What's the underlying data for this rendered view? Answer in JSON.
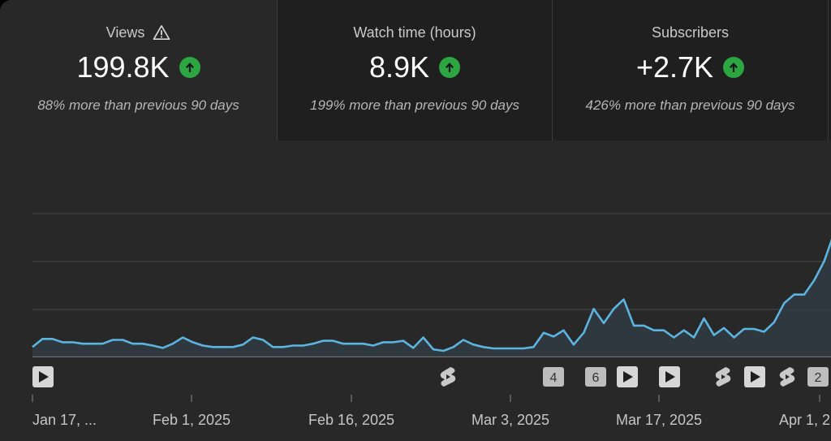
{
  "metrics": [
    {
      "label": "Views",
      "value": "199.8K",
      "comparison": "88% more than previous 90 days",
      "has_warning": true,
      "trend": "up"
    },
    {
      "label": "Watch time (hours)",
      "value": "8.9K",
      "comparison": "199% more than previous 90 days",
      "trend": "up"
    },
    {
      "label": "Subscribers",
      "value": "+2.7K",
      "comparison": "426% more than previous 90 days",
      "trend": "up"
    }
  ],
  "colors": {
    "line": "#5cb4e0",
    "area": "#2f3b42",
    "trend_up": "#2ba640",
    "grid": "#474747",
    "tick_text": "#c6c6c6"
  },
  "chart_data": {
    "type": "area",
    "title": "",
    "xlabel": "",
    "ylabel": "",
    "grid": true,
    "x_ticks": [
      "Jan 17, ...",
      "Feb 1, 2025",
      "Feb 16, 2025",
      "Mar 3, 2025",
      "Mar 17, 2025",
      "Apr 1, 2"
    ],
    "series": [
      {
        "values": [
          0.2,
          0.37,
          0.37,
          0.3,
          0.3,
          0.27,
          0.27,
          0.27,
          0.35,
          0.35,
          0.27,
          0.27,
          0.23,
          0.18,
          0.27,
          0.4,
          0.3,
          0.23,
          0.2,
          0.2,
          0.2,
          0.25,
          0.4,
          0.35,
          0.2,
          0.2,
          0.23,
          0.23,
          0.27,
          0.33,
          0.33,
          0.27,
          0.27,
          0.27,
          0.23,
          0.3,
          0.3,
          0.33,
          0.18,
          0.4,
          0.15,
          0.12,
          0.2,
          0.35,
          0.25,
          0.2,
          0.17,
          0.17,
          0.17,
          0.17,
          0.2,
          0.5,
          0.42,
          0.55,
          0.25,
          0.5,
          1.0,
          0.7,
          1.0,
          1.2,
          0.65,
          0.65,
          0.55,
          0.55,
          0.4,
          0.55,
          0.4,
          0.8,
          0.45,
          0.6,
          0.4,
          0.58,
          0.58,
          0.52,
          0.72,
          1.12,
          1.3,
          1.3,
          1.6,
          2.0,
          2.6
        ]
      }
    ],
    "markers": [
      {
        "kind": "video"
      },
      {
        "kind": "short"
      },
      {
        "kind": "count",
        "label": "4"
      },
      {
        "kind": "count",
        "label": "6"
      },
      {
        "kind": "video"
      },
      {
        "kind": "video"
      },
      {
        "kind": "short"
      },
      {
        "kind": "video"
      },
      {
        "kind": "short"
      },
      {
        "kind": "count",
        "label": "2"
      }
    ]
  }
}
